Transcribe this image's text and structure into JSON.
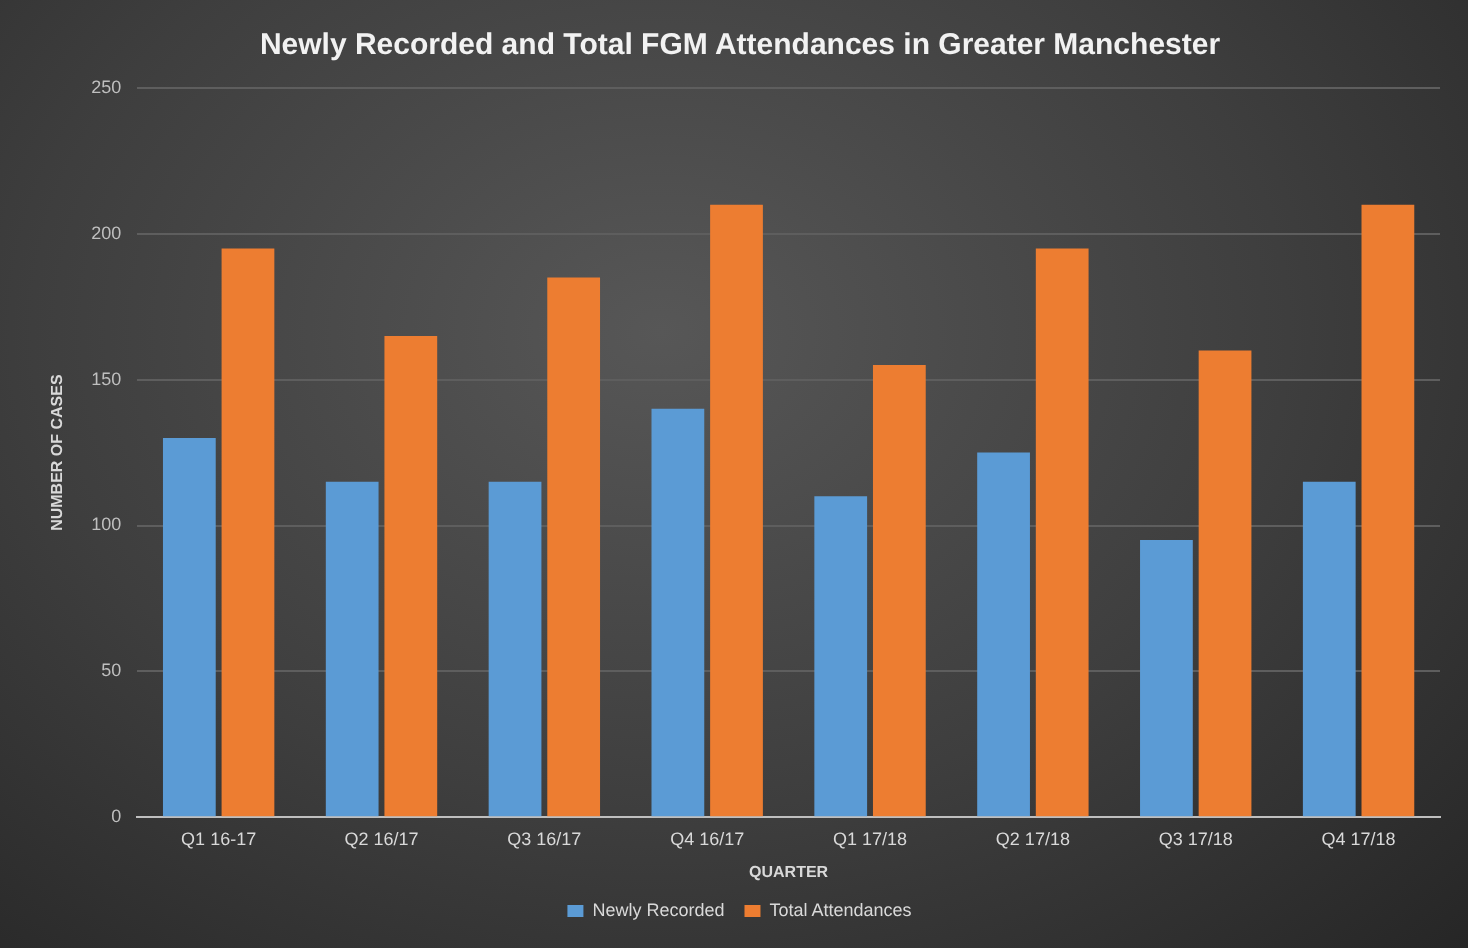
{
  "chart_data": {
    "type": "bar",
    "title": "Newly Recorded and Total FGM Attendances in Greater Manchester",
    "xlabel": "QUARTER",
    "ylabel": "NUMBER OF CASES",
    "categories": [
      "Q1 16-17",
      "Q2 16/17",
      "Q3 16/17",
      "Q4 16/17",
      "Q1 17/18",
      "Q2 17/18",
      "Q3 17/18",
      "Q4 17/18"
    ],
    "series": [
      {
        "name": "Newly Recorded",
        "color": "#5b9bd5",
        "values": [
          130,
          115,
          115,
          140,
          110,
          125,
          95,
          115
        ]
      },
      {
        "name": "Total Attendances",
        "color": "#ed7d31",
        "values": [
          195,
          165,
          185,
          210,
          155,
          195,
          160,
          210
        ]
      }
    ],
    "ylim": [
      0,
      250
    ],
    "yticks": [
      0,
      50,
      100,
      150,
      200,
      250
    ],
    "grid": "y",
    "legend": "bottom"
  }
}
